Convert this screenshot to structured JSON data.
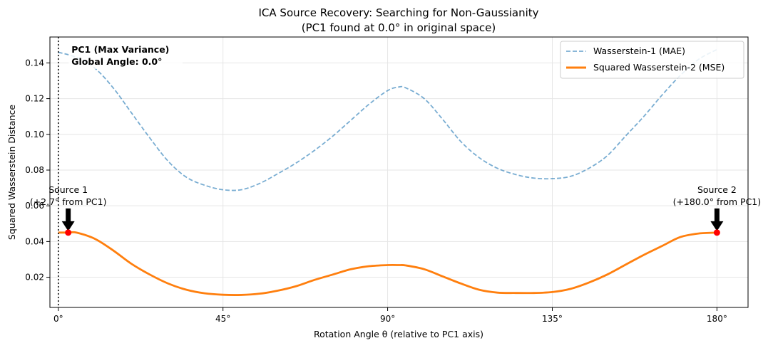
{
  "chart_data": {
    "type": "line",
    "title_line1": "ICA Source Recovery: Searching for Non-Gaussianity",
    "title_line2": "(PC1 found at 0.0° in original space)",
    "xlabel": "Rotation Angle θ (relative to PC1 axis)",
    "ylabel": "Squared Wasserstein Distance",
    "xlim": [
      -2.3,
      188.5
    ],
    "ylim": [
      0.0031,
      0.1545
    ],
    "x_ticks": [
      0,
      45,
      90,
      135,
      180
    ],
    "x_tick_labels": [
      "0°",
      "45°",
      "90°",
      "135°",
      "180°"
    ],
    "y_ticks": [
      0.02,
      0.04,
      0.06,
      0.08,
      0.1,
      0.12,
      0.14
    ],
    "y_tick_labels": [
      "0.02",
      "0.04",
      "0.06",
      "0.08",
      "0.10",
      "0.12",
      "0.14"
    ],
    "grid": true,
    "legend_position": "top-right",
    "series": [
      {
        "name": "Wasserstein-1 (MAE)",
        "color": "#1f77b4",
        "style": "dashed",
        "x": [
          0,
          5,
          10,
          15,
          20,
          25,
          30,
          35,
          40,
          45,
          50,
          55,
          60,
          65,
          70,
          75,
          80,
          85,
          90,
          93,
          95,
          100,
          105,
          110,
          115,
          120,
          125,
          130,
          135,
          140,
          145,
          150,
          155,
          160,
          165,
          170,
          175,
          180
        ],
        "y": [
          0.146,
          0.143,
          0.137,
          0.126,
          0.112,
          0.098,
          0.085,
          0.076,
          0.0715,
          0.069,
          0.069,
          0.0725,
          0.078,
          0.084,
          0.091,
          0.099,
          0.108,
          0.117,
          0.1245,
          0.1265,
          0.126,
          0.12,
          0.1085,
          0.096,
          0.087,
          0.081,
          0.0775,
          0.0755,
          0.0752,
          0.0765,
          0.081,
          0.088,
          0.099,
          0.11,
          0.122,
          0.133,
          0.142,
          0.1475
        ]
      },
      {
        "name": "Squared Wasserstein-2 (MSE)",
        "color": "#ff7f0e",
        "style": "solid",
        "x": [
          0,
          2.7,
          5,
          10,
          15,
          20,
          25,
          30,
          35,
          40,
          45,
          50,
          55,
          60,
          65,
          70,
          75,
          80,
          85,
          90,
          93,
          95,
          100,
          105,
          110,
          115,
          120,
          125,
          130,
          135,
          140,
          145,
          150,
          155,
          160,
          165,
          170,
          175,
          180
        ],
        "y": [
          0.045,
          0.045,
          0.045,
          0.0415,
          0.035,
          0.0275,
          0.0215,
          0.0165,
          0.013,
          0.011,
          0.0102,
          0.0101,
          0.0108,
          0.0125,
          0.015,
          0.0185,
          0.0215,
          0.0245,
          0.0262,
          0.0268,
          0.0268,
          0.0266,
          0.0245,
          0.0205,
          0.0165,
          0.013,
          0.0114,
          0.0112,
          0.0112,
          0.0117,
          0.0135,
          0.017,
          0.0215,
          0.027,
          0.0325,
          0.0375,
          0.0425,
          0.0445,
          0.045
        ]
      }
    ],
    "vline": {
      "x": 0,
      "style": "dotted",
      "color": "#000000"
    },
    "annotations": [
      {
        "id": "pc1",
        "lines": [
          "PC1 (Max Variance)",
          "Global Angle: 0.0°"
        ],
        "x": 3,
        "y": 0.147
      },
      {
        "id": "source1",
        "lines": [
          "Source 1",
          "(+2.7° from PC1)"
        ],
        "point_x": 2.7,
        "point_y": 0.045,
        "text_y": 0.0625
      },
      {
        "id": "source2",
        "lines": [
          "Source 2",
          "(+180.0° from PC1)"
        ],
        "point_x": 180,
        "point_y": 0.045,
        "text_y": 0.0625
      }
    ]
  }
}
